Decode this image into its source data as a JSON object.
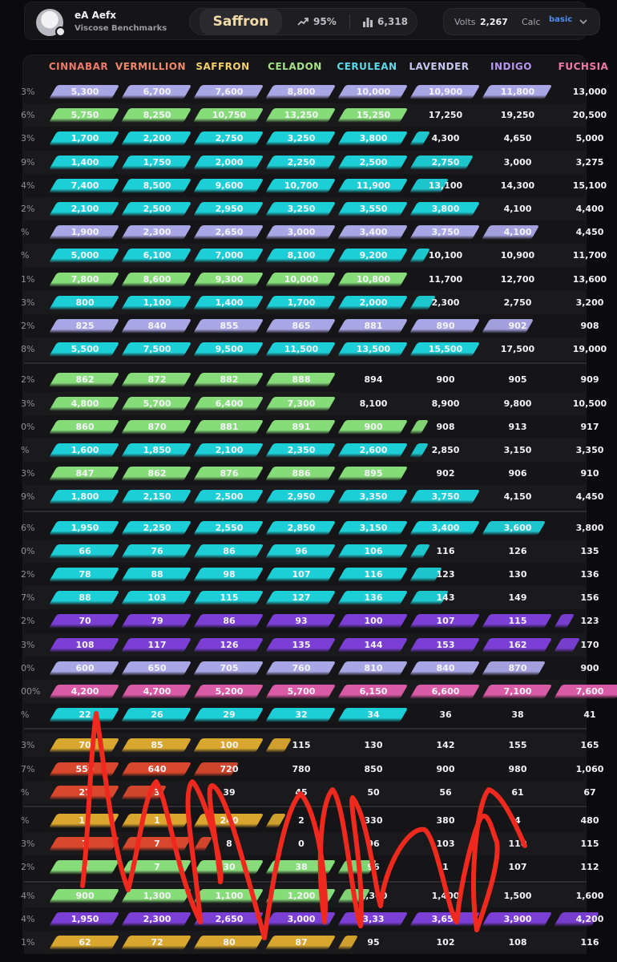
{
  "header": {
    "user_name": "eA Aefx",
    "user_sub": "Viscose Benchmarks",
    "title": "Saffron",
    "trend_value": "95%",
    "count_value": "6,318",
    "volts_label": "Volts",
    "volts_value": "2,267",
    "calc_label": "Calc",
    "calc_value": "basic"
  },
  "columns": [
    {
      "label": "CINNABAR",
      "color": "#f07a6a"
    },
    {
      "label": "VERMILLION",
      "color": "#f0896a"
    },
    {
      "label": "SAFFRON",
      "color": "#f3cf6a"
    },
    {
      "label": "CELADON",
      "color": "#a6e28a"
    },
    {
      "label": "CERULEAN",
      "color": "#5fd8e8"
    },
    {
      "label": "LAVENDER",
      "color": "#c6c6f0"
    },
    {
      "label": "INDIGO",
      "color": "#b796f0"
    },
    {
      "label": "FUCHSIA",
      "color": "#f07aa8"
    }
  ],
  "colors": {
    "lavender": "#a9a6e6",
    "green": "#86dc78",
    "cyan": "#1ccfd6",
    "purple": "#7c3fd6",
    "pink": "#d95aa5",
    "gold": "#d9a62e",
    "red": "#d9472c",
    "scribble": "#f0291f"
  },
  "rows": [
    {
      "pct": "3%",
      "color": "lavender",
      "bar_cols": 7,
      "values": [
        "5,300",
        "6,700",
        "7,600",
        "8,800",
        "10,000",
        "10,900",
        "11,800",
        "13,000"
      ]
    },
    {
      "pct": "6%",
      "color": "green",
      "bar_cols": 5,
      "values": [
        "5,750",
        "8,250",
        "10,750",
        "13,250",
        "15,250",
        "17,250",
        "19,250",
        "20,500"
      ]
    },
    {
      "pct": "3%",
      "color": "cyan",
      "bar_cols": 5.2,
      "values": [
        "1,700",
        "2,200",
        "2,750",
        "3,250",
        "3,800",
        "4,300",
        "4,650",
        "5,000"
      ]
    },
    {
      "pct": "9%",
      "color": "cyan",
      "bar_cols": 5.9,
      "values": [
        "1,400",
        "1,750",
        "2,000",
        "2,250",
        "2,500",
        "2,750",
        "3,000",
        "3,275"
      ]
    },
    {
      "pct": "4%",
      "color": "cyan",
      "bar_cols": 5.5,
      "values": [
        "7,400",
        "8,500",
        "9,600",
        "10,700",
        "11,900",
        "13,100",
        "14,300",
        "15,100"
      ]
    },
    {
      "pct": "2%",
      "color": "cyan",
      "bar_cols": 6,
      "values": [
        "2,100",
        "2,500",
        "2,950",
        "3,250",
        "3,550",
        "3,800",
        "4,100",
        "4,400"
      ]
    },
    {
      "pct": "%",
      "color": "lavender",
      "bar_cols": 6.8,
      "values": [
        "1,900",
        "2,300",
        "2,650",
        "3,000",
        "3,400",
        "3,750",
        "4,100",
        "4,450"
      ]
    },
    {
      "pct": "%",
      "color": "cyan",
      "bar_cols": 5.2,
      "values": [
        "5,000",
        "6,100",
        "7,000",
        "8,100",
        "9,200",
        "10,100",
        "10,900",
        "11,700"
      ]
    },
    {
      "pct": "1%",
      "color": "green",
      "bar_cols": 5,
      "values": [
        "7,800",
        "8,600",
        "9,300",
        "10,000",
        "10,800",
        "11,700",
        "12,700",
        "13,600"
      ]
    },
    {
      "pct": "3%",
      "color": "cyan",
      "bar_cols": 5.3,
      "values": [
        "800",
        "1,100",
        "1,400",
        "1,700",
        "2,000",
        "2,300",
        "2,750",
        "3,200"
      ]
    },
    {
      "pct": "2%",
      "color": "lavender",
      "bar_cols": 6.7,
      "values": [
        "825",
        "840",
        "855",
        "865",
        "881",
        "890",
        "902",
        "908"
      ]
    },
    {
      "pct": "8%",
      "color": "cyan",
      "bar_cols": 6,
      "values": [
        "5,500",
        "7,500",
        "9,500",
        "11,500",
        "13,500",
        "15,500",
        "17,500",
        "19,000"
      ]
    },
    {
      "pct": "2%",
      "color": "green",
      "bar_cols": 4,
      "values": [
        "862",
        "872",
        "882",
        "888",
        "894",
        "900",
        "905",
        "909"
      ]
    },
    {
      "pct": "3%",
      "color": "green",
      "bar_cols": 4,
      "values": [
        "4,800",
        "5,700",
        "6,400",
        "7,300",
        "8,100",
        "8,900",
        "9,800",
        "10,500"
      ]
    },
    {
      "pct": "0%",
      "color": "green",
      "bar_cols": 5.1,
      "values": [
        "860",
        "870",
        "881",
        "891",
        "900",
        "908",
        "913",
        "917"
      ]
    },
    {
      "pct": "%",
      "color": "cyan",
      "bar_cols": 5.1,
      "values": [
        "1,600",
        "1,850",
        "2,100",
        "2,350",
        "2,600",
        "2,850",
        "3,150",
        "3,350"
      ]
    },
    {
      "pct": "3%",
      "color": "green",
      "bar_cols": 5,
      "values": [
        "847",
        "862",
        "876",
        "886",
        "895",
        "902",
        "906",
        "910"
      ]
    },
    {
      "pct": "9%",
      "color": "cyan",
      "bar_cols": 6,
      "values": [
        "1,800",
        "2,150",
        "2,500",
        "2,950",
        "3,350",
        "3,750",
        "4,150",
        "4,450"
      ]
    },
    {
      "pct": "6%",
      "color": "cyan",
      "bar_cols": 6.9,
      "values": [
        "1,950",
        "2,250",
        "2,550",
        "2,850",
        "3,150",
        "3,400",
        "3,600",
        "3,800"
      ]
    },
    {
      "pct": "0%",
      "color": "cyan",
      "bar_cols": 5.2,
      "values": [
        "66",
        "76",
        "86",
        "96",
        "106",
        "116",
        "126",
        "135"
      ]
    },
    {
      "pct": "2%",
      "color": "cyan",
      "bar_cols": 5.4,
      "values": [
        "78",
        "88",
        "98",
        "107",
        "116",
        "123",
        "130",
        "136"
      ]
    },
    {
      "pct": "7%",
      "color": "cyan",
      "bar_cols": 5.5,
      "values": [
        "88",
        "103",
        "115",
        "127",
        "136",
        "143",
        "149",
        "156"
      ]
    },
    {
      "pct": "2%",
      "color": "purple",
      "bar_cols": 7.2,
      "values": [
        "70",
        "79",
        "86",
        "93",
        "100",
        "107",
        "115",
        "123"
      ]
    },
    {
      "pct": "3%",
      "color": "purple",
      "bar_cols": 7.3,
      "values": [
        "108",
        "117",
        "126",
        "135",
        "144",
        "153",
        "162",
        "170"
      ]
    },
    {
      "pct": "0%",
      "color": "lavender",
      "bar_cols": 6.9,
      "values": [
        "600",
        "650",
        "705",
        "760",
        "810",
        "840",
        "870",
        "900"
      ]
    },
    {
      "pct": "00%",
      "color": "pink",
      "bar_cols": 8,
      "values": [
        "4,200",
        "4,700",
        "5,200",
        "5,700",
        "6,150",
        "6,600",
        "7,100",
        "7,600"
      ]
    },
    {
      "pct": "%",
      "color": "cyan",
      "bar_cols": 5,
      "values": [
        "22",
        "26",
        "29",
        "32",
        "34",
        "36",
        "38",
        "41"
      ]
    },
    {
      "pct": "3%",
      "color": "gold",
      "bar_cols": 3.3,
      "values": [
        "70",
        "85",
        "100",
        "115",
        "130",
        "142",
        "155",
        "165"
      ]
    },
    {
      "pct": "7%",
      "color": "red",
      "bar_cols": 2.6,
      "values": [
        "550",
        "640",
        "720",
        "780",
        "850",
        "900",
        "980",
        "1,060"
      ]
    },
    {
      "pct": "%",
      "color": "red",
      "bar_cols": 1.6,
      "values": [
        "27",
        "3",
        "39",
        "45",
        "50",
        "56",
        "61",
        "67"
      ]
    },
    {
      "pct": "%",
      "color": "gold",
      "bar_cols": 3.2,
      "values": [
        "15",
        "1",
        "240",
        "2",
        "330",
        "380",
        "4",
        "480"
      ]
    },
    {
      "pct": "3%",
      "color": "red",
      "bar_cols": 2.1,
      "values": [
        "7",
        "7",
        "8",
        "0",
        "96",
        "103",
        "110",
        "115"
      ]
    },
    {
      "pct": "2%",
      "color": "green",
      "bar_cols": 4.5,
      "values": [
        "6",
        "7",
        "30",
        "38",
        "96",
        "1",
        "107",
        "112"
      ]
    },
    {
      "pct": "4%",
      "color": "green",
      "bar_cols": 4.4,
      "values": [
        "900",
        "1,300",
        "1,100",
        "1,200",
        "1,300",
        "1,400",
        "1,500",
        "1,600"
      ]
    },
    {
      "pct": "4%",
      "color": "purple",
      "bar_cols": 7.6,
      "values": [
        "1,950",
        "2,300",
        "2,650",
        "3,000",
        "3,33",
        "3,650",
        "3,900",
        "4,200"
      ]
    },
    {
      "pct": "1%",
      "color": "gold",
      "bar_cols": 4.2,
      "values": [
        "62",
        "72",
        "80",
        "87",
        "95",
        "102",
        "108",
        "116"
      ]
    }
  ]
}
